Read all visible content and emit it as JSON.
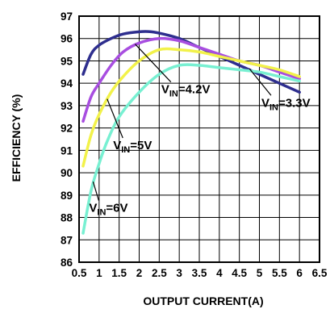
{
  "chart_data": {
    "type": "line",
    "xlabel": "OUTPUT CURRENT(A)",
    "ylabel": "EFFICIENCY (%)",
    "xlim": [
      0.5,
      6.5
    ],
    "ylim": [
      86,
      97
    ],
    "xticks": [
      0.5,
      1,
      1.5,
      2,
      2.5,
      3,
      3.5,
      4,
      4.5,
      5,
      5.5,
      6,
      6.5
    ],
    "xtick_labels": [
      "0.5",
      "1",
      "1.5",
      "2",
      "2.5",
      "3",
      "3.5",
      "4",
      "4.5",
      "5",
      "5.5",
      "6",
      "6.5"
    ],
    "yticks": [
      86,
      87,
      88,
      89,
      90,
      91,
      92,
      93,
      94,
      95,
      96,
      97
    ],
    "ytick_labels": [
      "86",
      "87",
      "88",
      "89",
      "90",
      "91",
      "92",
      "93",
      "94",
      "95",
      "96",
      "97"
    ],
    "grid": true,
    "legend": "none",
    "series": [
      {
        "name": "VIN=3.3V",
        "color": "#2e2e8e",
        "x": [
          0.6,
          0.8,
          1.0,
          1.3,
          1.6,
          2.0,
          2.3,
          2.6,
          3.0,
          3.5,
          4.0,
          4.5,
          5.0,
          5.5,
          6.0
        ],
        "y": [
          94.4,
          95.3,
          95.7,
          96.0,
          96.2,
          96.3,
          96.3,
          96.2,
          96.0,
          95.6,
          95.2,
          94.8,
          94.4,
          94.0,
          93.6
        ]
      },
      {
        "name": "VIN=4.2V",
        "color": "#a84ee0",
        "x": [
          0.6,
          0.8,
          1.0,
          1.3,
          1.6,
          2.0,
          2.5,
          3.0,
          3.5,
          4.0,
          4.5,
          5.0,
          5.5,
          6.0
        ],
        "y": [
          92.3,
          93.4,
          94.0,
          94.8,
          95.4,
          95.8,
          96.0,
          95.9,
          95.6,
          95.3,
          95.0,
          94.8,
          94.5,
          94.2
        ]
      },
      {
        "name": "VIN=5V",
        "color": "#f2f24a",
        "x": [
          0.6,
          0.8,
          1.0,
          1.3,
          1.6,
          2.0,
          2.5,
          3.0,
          3.5,
          4.0,
          4.5,
          5.0,
          5.5,
          6.0
        ],
        "y": [
          90.3,
          91.7,
          92.6,
          93.6,
          94.3,
          95.0,
          95.5,
          95.5,
          95.4,
          95.2,
          95.0,
          94.8,
          94.6,
          94.3
        ]
      },
      {
        "name": "VIN=6V",
        "color": "#78f0d2",
        "x": [
          0.6,
          0.8,
          1.0,
          1.2,
          1.5,
          2.0,
          2.5,
          3.0,
          3.5,
          4.0,
          4.5,
          5.0,
          5.5,
          6.0
        ],
        "y": [
          87.3,
          89.2,
          90.4,
          91.4,
          92.5,
          93.6,
          94.4,
          94.8,
          94.8,
          94.7,
          94.6,
          94.5,
          94.3,
          94.1
        ]
      }
    ],
    "annotations": [
      {
        "main": "V",
        "sub": "IN",
        "rest": "=4.2V",
        "series": "VIN=4.2V"
      },
      {
        "main": "V",
        "sub": "IN",
        "rest": "=3.3V",
        "series": "VIN=3.3V"
      },
      {
        "main": "V",
        "sub": "IN",
        "rest": "=5V",
        "series": "VIN=5V"
      },
      {
        "main": "V",
        "sub": "IN",
        "rest": "=6V",
        "series": "VIN=6V"
      }
    ]
  }
}
